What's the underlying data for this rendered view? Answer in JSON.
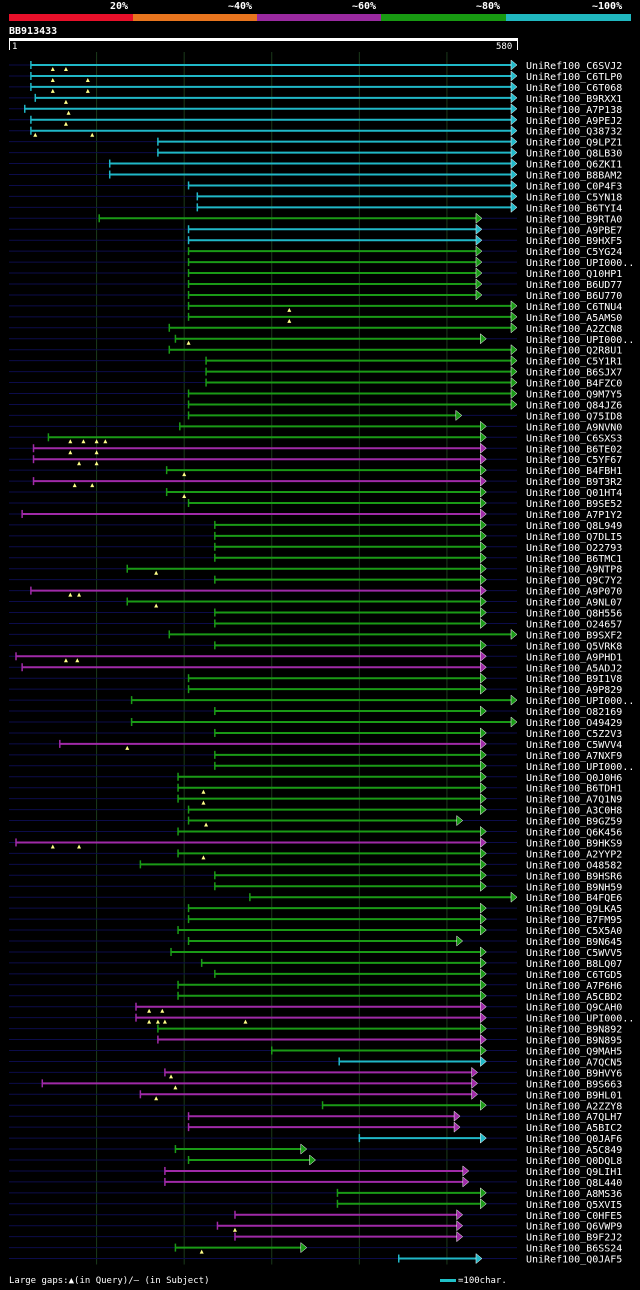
{
  "legend": {
    "segments": [
      {
        "label": "20%",
        "color": "#e8102a"
      },
      {
        "label": "~40%",
        "color": "#e8751e"
      },
      {
        "label": "~60%",
        "color": "#9a2aa0"
      },
      {
        "label": "~80%",
        "color": "#189a12"
      },
      {
        "label": "~100%",
        "color": "#20b8c0"
      }
    ]
  },
  "query": {
    "name": "BB913433",
    "start_label": "1",
    "end_label": "580",
    "length": 580
  },
  "footer": {
    "text": "Large gaps:▲(in Query)/— (in Subject)",
    "scale_text": "=100char."
  },
  "hits": [
    {
      "name": "UniRef100_C6SVJ2",
      "color": "cyan",
      "start": 25,
      "end": 580,
      "arrow": true,
      "gaps": [
        50,
        65
      ]
    },
    {
      "name": "UniRef100_C6TLP0",
      "color": "cyan",
      "start": 25,
      "end": 580,
      "arrow": true,
      "gaps": [
        50,
        90
      ]
    },
    {
      "name": "UniRef100_C6T068",
      "color": "cyan",
      "start": 25,
      "end": 580,
      "arrow": true,
      "gaps": [
        50,
        90
      ]
    },
    {
      "name": "UniRef100_B9RXX1",
      "color": "cyan",
      "start": 30,
      "end": 580,
      "arrow": true,
      "gaps": [
        65
      ]
    },
    {
      "name": "UniRef100_A7P138",
      "color": "cyan",
      "start": 18,
      "end": 580,
      "arrow": true,
      "gaps": [
        68
      ]
    },
    {
      "name": "UniRef100_A9PEJ2",
      "color": "cyan",
      "start": 25,
      "end": 580,
      "arrow": true,
      "gaps": [
        65
      ]
    },
    {
      "name": "UniRef100_Q38732",
      "color": "cyan",
      "start": 25,
      "end": 580,
      "arrow": true,
      "gaps": [
        30,
        95
      ]
    },
    {
      "name": "UniRef100_Q9LPZ1",
      "color": "cyan",
      "start": 170,
      "end": 580,
      "arrow": true,
      "gaps": []
    },
    {
      "name": "UniRef100_Q8LB30",
      "color": "cyan",
      "start": 170,
      "end": 580,
      "arrow": true,
      "gaps": []
    },
    {
      "name": "UniRef100_Q6ZKI1",
      "color": "cyan",
      "start": 115,
      "end": 580,
      "arrow": true,
      "gaps": []
    },
    {
      "name": "UniRef100_B8BAM2",
      "color": "cyan",
      "start": 115,
      "end": 580,
      "arrow": true,
      "gaps": []
    },
    {
      "name": "UniRef100_C0P4F3",
      "color": "cyan",
      "start": 205,
      "end": 580,
      "arrow": true,
      "gaps": []
    },
    {
      "name": "UniRef100_C5YN18",
      "color": "cyan",
      "start": 215,
      "end": 580,
      "arrow": true,
      "gaps": []
    },
    {
      "name": "UniRef100_B6TYI4",
      "color": "cyan",
      "start": 215,
      "end": 580,
      "arrow": true,
      "gaps": []
    },
    {
      "name": "UniRef100_B9RTA0",
      "color": "green",
      "start": 103,
      "end": 540,
      "arrow": true,
      "gaps": []
    },
    {
      "name": "UniRef100_A9PBE7",
      "color": "cyan",
      "start": 205,
      "end": 540,
      "arrow": true,
      "gaps": []
    },
    {
      "name": "UniRef100_B9HXF5",
      "color": "cyan",
      "start": 205,
      "end": 540,
      "arrow": true,
      "gaps": []
    },
    {
      "name": "UniRef100_C5YG24",
      "color": "green",
      "start": 205,
      "end": 540,
      "arrow": true,
      "gaps": []
    },
    {
      "name": "UniRef100_UPI000..",
      "color": "green",
      "start": 205,
      "end": 540,
      "arrow": true,
      "gaps": []
    },
    {
      "name": "UniRef100_Q10HP1",
      "color": "green",
      "start": 205,
      "end": 540,
      "arrow": true,
      "gaps": []
    },
    {
      "name": "UniRef100_B6UD77",
      "color": "green",
      "start": 205,
      "end": 540,
      "arrow": true,
      "gaps": []
    },
    {
      "name": "UniRef100_B6U770",
      "color": "green",
      "start": 205,
      "end": 540,
      "arrow": true,
      "gaps": []
    },
    {
      "name": "UniRef100_C6TNU4",
      "color": "green",
      "start": 205,
      "end": 580,
      "arrow": true,
      "gaps": [
        320
      ]
    },
    {
      "name": "UniRef100_A5AMS0",
      "color": "green",
      "start": 205,
      "end": 580,
      "arrow": true,
      "gaps": [
        320
      ]
    },
    {
      "name": "UniRef100_A2ZCN8",
      "color": "green",
      "start": 183,
      "end": 580,
      "arrow": true,
      "gaps": []
    },
    {
      "name": "UniRef100_UPI000..",
      "color": "green",
      "start": 190,
      "end": 545,
      "arrow": true,
      "gaps": [
        205
      ]
    },
    {
      "name": "UniRef100_Q2R8U1",
      "color": "green",
      "start": 183,
      "end": 580,
      "arrow": true,
      "gaps": []
    },
    {
      "name": "UniRef100_C5Y1R1",
      "color": "green",
      "start": 225,
      "end": 580,
      "arrow": true,
      "gaps": []
    },
    {
      "name": "UniRef100_B6SJX7",
      "color": "green",
      "start": 225,
      "end": 580,
      "arrow": true,
      "gaps": []
    },
    {
      "name": "UniRef100_B4FZC0",
      "color": "green",
      "start": 225,
      "end": 580,
      "arrow": true,
      "gaps": []
    },
    {
      "name": "UniRef100_Q9M7Y5",
      "color": "green",
      "start": 205,
      "end": 580,
      "arrow": true,
      "gaps": []
    },
    {
      "name": "UniRef100_Q84JZ6",
      "color": "green",
      "start": 205,
      "end": 580,
      "arrow": true,
      "gaps": []
    },
    {
      "name": "UniRef100_Q75ID8",
      "color": "green",
      "start": 205,
      "end": 517,
      "arrow": true,
      "gaps": []
    },
    {
      "name": "UniRef100_A9NVN0",
      "color": "green",
      "start": 195,
      "end": 545,
      "arrow": true,
      "gaps": []
    },
    {
      "name": "UniRef100_C6SXS3",
      "color": "green",
      "start": 45,
      "end": 545,
      "arrow": true,
      "gaps": [
        70,
        85,
        100,
        110
      ]
    },
    {
      "name": "UniRef100_B6TE02",
      "color": "magenta",
      "start": 28,
      "end": 545,
      "arrow": true,
      "gaps": [
        70,
        100
      ]
    },
    {
      "name": "UniRef100_C5YF67",
      "color": "magenta",
      "start": 28,
      "end": 545,
      "arrow": true,
      "gaps": [
        80,
        100
      ]
    },
    {
      "name": "UniRef100_B4FBH1",
      "color": "green",
      "start": 180,
      "end": 545,
      "arrow": true,
      "gaps": [
        200
      ]
    },
    {
      "name": "UniRef100_B9T3R2",
      "color": "magenta",
      "start": 28,
      "end": 545,
      "arrow": true,
      "gaps": [
        75,
        95
      ]
    },
    {
      "name": "UniRef100_Q01HT4",
      "color": "green",
      "start": 180,
      "end": 545,
      "arrow": true,
      "gaps": [
        200
      ]
    },
    {
      "name": "UniRef100_B9SE52",
      "color": "green",
      "start": 205,
      "end": 545,
      "arrow": true,
      "gaps": []
    },
    {
      "name": "UniRef100_A7P1Y2",
      "color": "magenta",
      "start": 15,
      "end": 545,
      "arrow": true,
      "gaps": []
    },
    {
      "name": "UniRef100_Q8L949",
      "color": "green",
      "start": 235,
      "end": 545,
      "arrow": true,
      "gaps": []
    },
    {
      "name": "UniRef100_Q7DLI5",
      "color": "green",
      "start": 235,
      "end": 545,
      "arrow": true,
      "gaps": []
    },
    {
      "name": "UniRef100_O22793",
      "color": "green",
      "start": 235,
      "end": 545,
      "arrow": true,
      "gaps": []
    },
    {
      "name": "UniRef100_B6TMC1",
      "color": "green",
      "start": 235,
      "end": 545,
      "arrow": true,
      "gaps": []
    },
    {
      "name": "UniRef100_A9NTP8",
      "color": "green",
      "start": 135,
      "end": 545,
      "arrow": true,
      "gaps": [
        168
      ]
    },
    {
      "name": "UniRef100_Q9C7Y2",
      "color": "green",
      "start": 235,
      "end": 545,
      "arrow": true,
      "gaps": []
    },
    {
      "name": "UniRef100_A9P070",
      "color": "magenta",
      "start": 25,
      "end": 545,
      "arrow": true,
      "gaps": [
        70,
        80
      ]
    },
    {
      "name": "UniRef100_A9NL07",
      "color": "green",
      "start": 135,
      "end": 545,
      "arrow": true,
      "gaps": [
        168
      ]
    },
    {
      "name": "UniRef100_Q8H556",
      "color": "green",
      "start": 235,
      "end": 545,
      "arrow": true,
      "gaps": []
    },
    {
      "name": "UniRef100_O24657",
      "color": "green",
      "start": 235,
      "end": 545,
      "arrow": true,
      "gaps": []
    },
    {
      "name": "UniRef100_B9SXF2",
      "color": "green",
      "start": 183,
      "end": 580,
      "arrow": true,
      "gaps": []
    },
    {
      "name": "UniRef100_Q5VRK8",
      "color": "green",
      "start": 235,
      "end": 545,
      "arrow": true,
      "gaps": []
    },
    {
      "name": "UniRef100_A9PHD1",
      "color": "magenta",
      "start": 8,
      "end": 545,
      "arrow": true,
      "gaps": [
        65,
        78
      ]
    },
    {
      "name": "UniRef100_A5ADJ2",
      "color": "magenta",
      "start": 15,
      "end": 545,
      "arrow": true,
      "gaps": []
    },
    {
      "name": "UniRef100_B9I1V8",
      "color": "green",
      "start": 205,
      "end": 545,
      "arrow": true,
      "gaps": []
    },
    {
      "name": "UniRef100_A9P829",
      "color": "green",
      "start": 205,
      "end": 545,
      "arrow": true,
      "gaps": []
    },
    {
      "name": "UniRef100_UPI000..",
      "color": "green",
      "start": 140,
      "end": 580,
      "arrow": true,
      "gaps": []
    },
    {
      "name": "UniRef100_O82169",
      "color": "green",
      "start": 235,
      "end": 545,
      "arrow": true,
      "gaps": []
    },
    {
      "name": "UniRef100_O49429",
      "color": "green",
      "start": 140,
      "end": 580,
      "arrow": true,
      "gaps": []
    },
    {
      "name": "UniRef100_C5Z2V3",
      "color": "green",
      "start": 235,
      "end": 545,
      "arrow": true,
      "gaps": []
    },
    {
      "name": "UniRef100_C5WVV4",
      "color": "magenta",
      "start": 58,
      "end": 545,
      "arrow": true,
      "gaps": [
        135
      ]
    },
    {
      "name": "UniRef100_A7NXF9",
      "color": "green",
      "start": 235,
      "end": 545,
      "arrow": true,
      "gaps": []
    },
    {
      "name": "UniRef100_UPI000..",
      "color": "green",
      "start": 235,
      "end": 545,
      "arrow": true,
      "gaps": []
    },
    {
      "name": "UniRef100_Q0J0H6",
      "color": "green",
      "start": 193,
      "end": 545,
      "arrow": true,
      "gaps": []
    },
    {
      "name": "UniRef100_B6TDH1",
      "color": "green",
      "start": 193,
      "end": 545,
      "arrow": true,
      "gaps": [
        222
      ]
    },
    {
      "name": "UniRef100_A7Q1N9",
      "color": "green",
      "start": 193,
      "end": 545,
      "arrow": true,
      "gaps": [
        222
      ]
    },
    {
      "name": "UniRef100_A3C0H8",
      "color": "green",
      "start": 205,
      "end": 545,
      "arrow": true,
      "gaps": []
    },
    {
      "name": "UniRef100_B9GZ59",
      "color": "green",
      "start": 205,
      "end": 518,
      "arrow": true,
      "gaps": [
        225
      ]
    },
    {
      "name": "UniRef100_Q6K456",
      "color": "green",
      "start": 193,
      "end": 545,
      "arrow": true,
      "gaps": []
    },
    {
      "name": "UniRef100_B9HKS9",
      "color": "magenta",
      "start": 8,
      "end": 545,
      "arrow": true,
      "gaps": [
        50,
        80
      ]
    },
    {
      "name": "UniRef100_A2YYP2",
      "color": "green",
      "start": 193,
      "end": 545,
      "arrow": true,
      "gaps": [
        222
      ]
    },
    {
      "name": "UniRef100_O48582",
      "color": "green",
      "start": 150,
      "end": 545,
      "arrow": true,
      "gaps": []
    },
    {
      "name": "UniRef100_B9HSR6",
      "color": "green",
      "start": 235,
      "end": 545,
      "arrow": true,
      "gaps": []
    },
    {
      "name": "UniRef100_B9NH59",
      "color": "green",
      "start": 235,
      "end": 545,
      "arrow": true,
      "gaps": []
    },
    {
      "name": "UniRef100_B4FQE6",
      "color": "green",
      "start": 275,
      "end": 580,
      "arrow": true,
      "gaps": []
    },
    {
      "name": "UniRef100_Q9LKA5",
      "color": "green",
      "start": 205,
      "end": 545,
      "arrow": true,
      "gaps": []
    },
    {
      "name": "UniRef100_B7FM95",
      "color": "green",
      "start": 205,
      "end": 545,
      "arrow": true,
      "gaps": []
    },
    {
      "name": "UniRef100_C5X5A0",
      "color": "green",
      "start": 193,
      "end": 545,
      "arrow": true,
      "gaps": []
    },
    {
      "name": "UniRef100_B9N645",
      "color": "green",
      "start": 205,
      "end": 518,
      "arrow": true,
      "gaps": []
    },
    {
      "name": "UniRef100_C5WVV5",
      "color": "green",
      "start": 185,
      "end": 545,
      "arrow": true,
      "gaps": []
    },
    {
      "name": "UniRef100_B8LQ07",
      "color": "green",
      "start": 220,
      "end": 545,
      "arrow": true,
      "gaps": []
    },
    {
      "name": "UniRef100_C6TGD5",
      "color": "green",
      "start": 235,
      "end": 545,
      "arrow": true,
      "gaps": []
    },
    {
      "name": "UniRef100_A7P6H6",
      "color": "green",
      "start": 193,
      "end": 545,
      "arrow": true,
      "gaps": []
    },
    {
      "name": "UniRef100_A5CBD2",
      "color": "green",
      "start": 193,
      "end": 545,
      "arrow": true,
      "gaps": []
    },
    {
      "name": "UniRef100_Q9CAH0",
      "color": "magenta",
      "start": 145,
      "end": 545,
      "arrow": true,
      "gaps": [
        160,
        175
      ]
    },
    {
      "name": "UniRef100_UPI000..",
      "color": "magenta",
      "start": 145,
      "end": 545,
      "arrow": true,
      "gaps": [
        160,
        170,
        178,
        270
      ]
    },
    {
      "name": "UniRef100_B9N892",
      "color": "green",
      "start": 170,
      "end": 545,
      "arrow": true,
      "gaps": []
    },
    {
      "name": "UniRef100_B9N895",
      "color": "magenta",
      "start": 170,
      "end": 545,
      "arrow": true,
      "gaps": []
    },
    {
      "name": "UniRef100_Q9MAH5",
      "color": "green",
      "start": 300,
      "end": 545,
      "arrow": true,
      "gaps": []
    },
    {
      "name": "UniRef100_A7QCN5",
      "color": "cyan",
      "start": 377,
      "end": 545,
      "arrow": true,
      "gaps": []
    },
    {
      "name": "UniRef100_B9HVY6",
      "color": "magenta",
      "start": 178,
      "end": 535,
      "arrow": true,
      "gaps": [
        185
      ]
    },
    {
      "name": "UniRef100_B9S663",
      "color": "magenta",
      "start": 38,
      "end": 535,
      "arrow": true,
      "gaps": [
        190
      ]
    },
    {
      "name": "UniRef100_B9HL01",
      "color": "magenta",
      "start": 150,
      "end": 535,
      "arrow": true,
      "gaps": [
        168
      ]
    },
    {
      "name": "UniRef100_A2ZZY8",
      "color": "green",
      "start": 358,
      "end": 545,
      "arrow": true,
      "gaps": []
    },
    {
      "name": "UniRef100_A7QLH7",
      "color": "magenta",
      "start": 205,
      "end": 515,
      "arrow": true,
      "gaps": []
    },
    {
      "name": "UniRef100_A5BIC2",
      "color": "magenta",
      "start": 205,
      "end": 515,
      "arrow": true,
      "gaps": []
    },
    {
      "name": "UniRef100_Q0JAF6",
      "color": "cyan",
      "start": 400,
      "end": 545,
      "arrow": true,
      "gaps": []
    },
    {
      "name": "UniRef100_A5C849",
      "color": "green",
      "start": 190,
      "end": 340,
      "arrow": true,
      "gaps": []
    },
    {
      "name": "UniRef100_Q0DQL8",
      "color": "green",
      "start": 205,
      "end": 350,
      "arrow": true,
      "gaps": []
    },
    {
      "name": "UniRef100_Q9LIH1",
      "color": "magenta",
      "start": 178,
      "end": 525,
      "arrow": true,
      "gaps": []
    },
    {
      "name": "UniRef100_Q8L440",
      "color": "magenta",
      "start": 178,
      "end": 525,
      "arrow": true,
      "gaps": []
    },
    {
      "name": "UniRef100_A8MS36",
      "color": "green",
      "start": 375,
      "end": 545,
      "arrow": true,
      "gaps": []
    },
    {
      "name": "UniRef100_Q5XVI5",
      "color": "green",
      "start": 375,
      "end": 545,
      "arrow": true,
      "gaps": []
    },
    {
      "name": "UniRef100_C0HFE5",
      "color": "magenta",
      "start": 258,
      "end": 518,
      "arrow": true,
      "gaps": []
    },
    {
      "name": "UniRef100_Q6VWP9",
      "color": "magenta",
      "start": 238,
      "end": 518,
      "arrow": true,
      "gaps": [
        258
      ]
    },
    {
      "name": "UniRef100_B9F2J2",
      "color": "magenta",
      "start": 258,
      "end": 518,
      "arrow": true,
      "gaps": []
    },
    {
      "name": "UniRef100_B6SS24",
      "color": "green",
      "start": 190,
      "end": 340,
      "arrow": true,
      "gaps": [
        220
      ]
    },
    {
      "name": "UniRef100_Q0JAF5",
      "color": "cyan",
      "start": 445,
      "end": 540,
      "arrow": true,
      "gaps": []
    }
  ],
  "colors": {
    "cyan": "#20b8c8",
    "green": "#1a9a16",
    "magenta": "#a02aa8",
    "guide": "#1b3a1b",
    "backline": "#0c0c4a"
  }
}
